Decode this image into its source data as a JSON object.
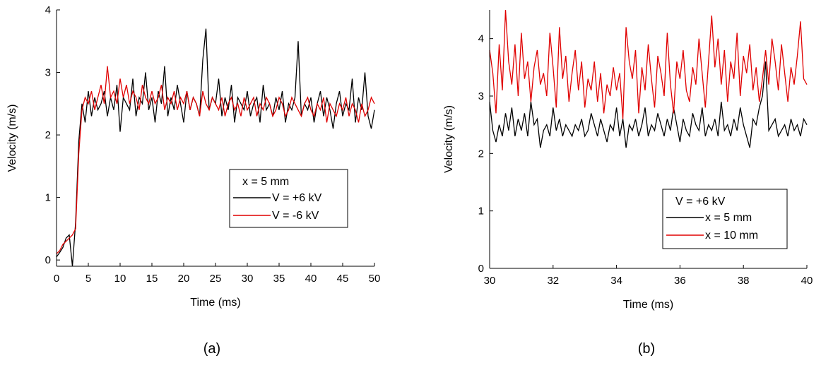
{
  "chart_data": [
    {
      "type": "line",
      "xlabel": "Time (ms)",
      "ylabel": "Velocity (m/s)",
      "caption": "(a)",
      "legend_title": "x = 5 mm",
      "x": [
        0,
        0.5,
        1,
        1.5,
        2,
        2.5,
        3,
        3.5,
        4,
        4.5,
        5,
        5.5,
        6,
        6.5,
        7,
        7.5,
        8,
        8.5,
        9,
        9.5,
        10,
        10.5,
        11,
        11.5,
        12,
        12.5,
        13,
        13.5,
        14,
        14.5,
        15,
        15.5,
        16,
        16.5,
        17,
        17.5,
        18,
        18.5,
        19,
        19.5,
        20,
        20.5,
        21,
        21.5,
        22,
        22.5,
        23,
        23.5,
        24,
        24.5,
        25,
        25.5,
        26,
        26.5,
        27,
        27.5,
        28,
        28.5,
        29,
        29.5,
        30,
        30.5,
        31,
        31.5,
        32,
        32.5,
        33,
        33.5,
        34,
        34.5,
        35,
        35.5,
        36,
        36.5,
        37,
        37.5,
        38,
        38.5,
        39,
        39.5,
        40,
        40.5,
        41,
        41.5,
        42,
        42.5,
        43,
        43.5,
        44,
        44.5,
        45,
        45.5,
        46,
        46.5,
        47,
        47.5,
        48,
        48.5,
        49,
        49.5,
        50
      ],
      "series": [
        {
          "name": "V = +6 kV",
          "color": "#000000",
          "values": [
            0.05,
            0.12,
            0.2,
            0.35,
            0.4,
            -0.1,
            0.6,
            1.9,
            2.5,
            2.2,
            2.7,
            2.3,
            2.6,
            2.4,
            2.5,
            2.7,
            2.3,
            2.6,
            2.4,
            2.8,
            2.05,
            2.6,
            2.5,
            2.4,
            2.9,
            2.3,
            2.6,
            2.5,
            3.0,
            2.4,
            2.6,
            2.2,
            2.7,
            2.5,
            3.1,
            2.3,
            2.6,
            2.4,
            2.8,
            2.5,
            2.2,
            2.7,
            2.4,
            2.6,
            2.5,
            2.3,
            3.2,
            3.7,
            2.4,
            2.6,
            2.5,
            2.9,
            2.3,
            2.6,
            2.4,
            2.8,
            2.2,
            2.6,
            2.5,
            2.4,
            2.7,
            2.3,
            2.5,
            2.6,
            2.2,
            2.8,
            2.4,
            2.5,
            2.3,
            2.6,
            2.4,
            2.7,
            2.2,
            2.5,
            2.4,
            2.6,
            3.5,
            2.3,
            2.5,
            2.4,
            2.6,
            2.2,
            2.5,
            2.7,
            2.3,
            2.6,
            2.4,
            2.1,
            2.5,
            2.7,
            2.3,
            2.5,
            2.4,
            2.9,
            2.2,
            2.6,
            2.4,
            3.0,
            2.3,
            2.1,
            2.4
          ]
        },
        {
          "name": "V = -6 kV",
          "color": "#e00000",
          "values": [
            0.1,
            0.15,
            0.25,
            0.3,
            0.35,
            0.4,
            0.5,
            1.7,
            2.4,
            2.6,
            2.5,
            2.7,
            2.4,
            2.6,
            2.8,
            2.5,
            3.1,
            2.6,
            2.7,
            2.5,
            2.9,
            2.6,
            2.8,
            2.5,
            2.7,
            2.6,
            2.4,
            2.8,
            2.6,
            2.5,
            2.7,
            2.5,
            2.6,
            2.8,
            2.4,
            2.6,
            2.5,
            2.7,
            2.4,
            2.6,
            2.5,
            2.7,
            2.4,
            2.6,
            2.5,
            2.3,
            2.7,
            2.5,
            2.4,
            2.6,
            2.5,
            2.4,
            2.6,
            2.3,
            2.5,
            2.6,
            2.4,
            2.5,
            2.3,
            2.6,
            2.4,
            2.5,
            2.6,
            2.3,
            2.5,
            2.4,
            2.6,
            2.5,
            2.3,
            2.4,
            2.6,
            2.5,
            2.3,
            2.4,
            2.6,
            2.5,
            2.4,
            2.3,
            2.5,
            2.6,
            2.4,
            2.3,
            2.5,
            2.4,
            2.6,
            2.2,
            2.5,
            2.4,
            2.3,
            2.5,
            2.4,
            2.6,
            2.3,
            2.5,
            2.4,
            2.2,
            2.5,
            2.3,
            2.4,
            2.6,
            2.5
          ]
        }
      ],
      "xlim": [
        0,
        50
      ],
      "ylim": [
        -0.1,
        4
      ],
      "xticks": [
        0,
        5,
        10,
        15,
        20,
        25,
        30,
        35,
        40,
        45,
        50
      ],
      "yticks": [
        0,
        1,
        2,
        3,
        4
      ]
    },
    {
      "type": "line",
      "xlabel": "Time (ms)",
      "ylabel": "Velocity (m/s)",
      "caption": "(b)",
      "legend_title": "V = +6 kV",
      "x": [
        30,
        30.1,
        30.2,
        30.3,
        30.4,
        30.5,
        30.6,
        30.7,
        30.8,
        30.9,
        31,
        31.1,
        31.2,
        31.3,
        31.4,
        31.5,
        31.6,
        31.7,
        31.8,
        31.9,
        32,
        32.1,
        32.2,
        32.3,
        32.4,
        32.5,
        32.6,
        32.7,
        32.8,
        32.9,
        33,
        33.1,
        33.2,
        33.3,
        33.4,
        33.5,
        33.6,
        33.7,
        33.8,
        33.9,
        34,
        34.1,
        34.2,
        34.3,
        34.4,
        34.5,
        34.6,
        34.7,
        34.8,
        34.9,
        35,
        35.1,
        35.2,
        35.3,
        35.4,
        35.5,
        35.6,
        35.7,
        35.8,
        35.9,
        36,
        36.1,
        36.2,
        36.3,
        36.4,
        36.5,
        36.6,
        36.7,
        36.8,
        36.9,
        37,
        37.1,
        37.2,
        37.3,
        37.4,
        37.5,
        37.6,
        37.7,
        37.8,
        37.9,
        38,
        38.1,
        38.2,
        38.3,
        38.4,
        38.5,
        38.6,
        38.7,
        38.8,
        38.9,
        39,
        39.1,
        39.2,
        39.3,
        39.4,
        39.5,
        39.6,
        39.7,
        39.8,
        39.9,
        40
      ],
      "series": [
        {
          "name": "x = 5 mm",
          "color": "#000000",
          "values": [
            2.9,
            2.4,
            2.2,
            2.5,
            2.3,
            2.7,
            2.4,
            2.8,
            2.3,
            2.6,
            2.4,
            2.7,
            2.3,
            2.9,
            2.5,
            2.6,
            2.1,
            2.4,
            2.5,
            2.3,
            2.8,
            2.4,
            2.6,
            2.3,
            2.5,
            2.4,
            2.3,
            2.5,
            2.4,
            2.6,
            2.3,
            2.4,
            2.7,
            2.5,
            2.3,
            2.6,
            2.4,
            2.2,
            2.5,
            2.4,
            2.8,
            2.3,
            2.6,
            2.1,
            2.5,
            2.4,
            2.6,
            2.3,
            2.5,
            2.8,
            2.3,
            2.5,
            2.4,
            2.7,
            2.5,
            2.3,
            2.6,
            2.4,
            2.8,
            2.5,
            2.2,
            2.6,
            2.4,
            2.3,
            2.7,
            2.5,
            2.4,
            2.8,
            2.3,
            2.5,
            2.4,
            2.6,
            2.3,
            2.9,
            2.4,
            2.5,
            2.3,
            2.6,
            2.4,
            2.8,
            2.5,
            2.3,
            2.1,
            2.6,
            2.5,
            2.8,
            3.0,
            3.6,
            2.4,
            2.5,
            2.6,
            2.3,
            2.4,
            2.5,
            2.3,
            2.6,
            2.4,
            2.5,
            2.3,
            2.6,
            2.5
          ]
        },
        {
          "name": "x = 10 mm",
          "color": "#e00000",
          "values": [
            3.8,
            3.4,
            2.7,
            3.9,
            3.1,
            4.5,
            3.6,
            3.2,
            3.9,
            3.0,
            4.1,
            3.3,
            3.6,
            2.9,
            3.5,
            3.8,
            3.2,
            3.4,
            3.0,
            4.1,
            3.5,
            2.8,
            4.2,
            3.3,
            3.7,
            2.9,
            3.4,
            3.8,
            3.1,
            3.6,
            2.8,
            3.3,
            3.1,
            3.6,
            2.9,
            3.4,
            2.7,
            3.2,
            3.0,
            3.5,
            3.1,
            3.4,
            2.6,
            4.2,
            3.6,
            3.3,
            3.8,
            2.7,
            3.5,
            3.1,
            3.9,
            3.3,
            2.8,
            3.7,
            3.4,
            3.0,
            4.1,
            3.2,
            2.7,
            3.6,
            3.3,
            3.8,
            3.1,
            2.9,
            3.5,
            3.2,
            4.0,
            3.4,
            2.8,
            3.6,
            4.4,
            3.5,
            4.0,
            3.2,
            3.8,
            2.9,
            3.6,
            3.3,
            4.1,
            3.0,
            3.7,
            3.4,
            3.9,
            3.1,
            3.5,
            2.9,
            3.3,
            3.8,
            3.2,
            4.0,
            3.6,
            3.1,
            3.9,
            3.4,
            2.9,
            3.5,
            3.2,
            3.7,
            4.3,
            3.3,
            3.2
          ]
        }
      ],
      "xlim": [
        30,
        40
      ],
      "ylim": [
        0,
        4.5
      ],
      "xticks": [
        30,
        32,
        34,
        36,
        38,
        40
      ],
      "yticks": [
        0,
        1,
        2,
        3,
        4
      ]
    }
  ]
}
